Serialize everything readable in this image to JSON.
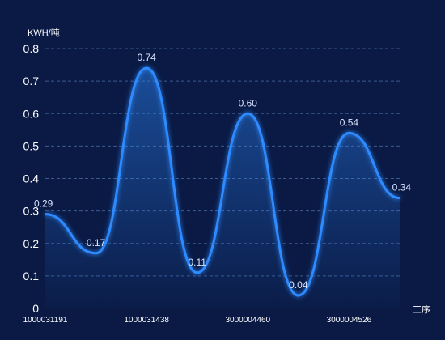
{
  "chart_data": {
    "type": "line",
    "ylabel": "KWH/吨",
    "xlabel": "工序",
    "ylim": [
      0,
      0.8
    ],
    "y_ticks": [
      "0",
      "0.1",
      "0.2",
      "0.3",
      "0.4",
      "0.5",
      "0.6",
      "0.7",
      "0.8"
    ],
    "x_tick_labels": [
      "1000031191",
      "1000031438",
      "3000004460",
      "3000004526"
    ],
    "grid": true,
    "smooth": true,
    "area_fill": true,
    "series": [
      {
        "values": [
          0.29,
          0.17,
          0.74,
          0.11,
          0.6,
          0.04,
          0.54,
          0.34
        ],
        "labels": [
          "0.29",
          "0.17",
          "0.74",
          "0.11",
          "0.60",
          "0.04",
          "0.54",
          "0.34"
        ]
      }
    ],
    "colors": {
      "background": "#0a1a45",
      "line": "#2e8bff",
      "grid": "#3a5a8c",
      "text": "#ffffff",
      "data_label": "#d8e4ff"
    }
  }
}
